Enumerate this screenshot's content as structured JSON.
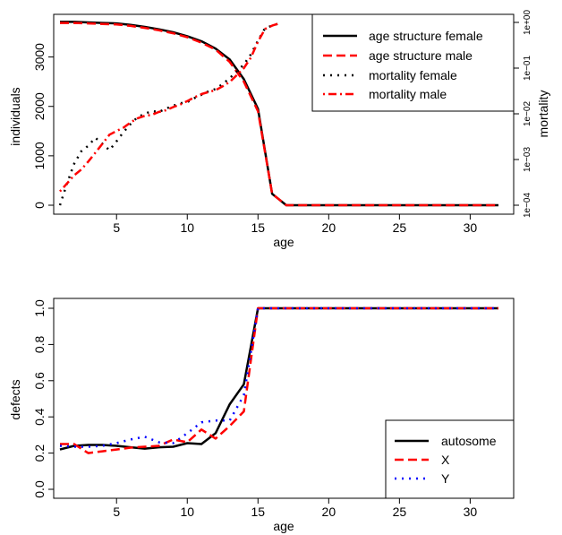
{
  "chart_data": [
    {
      "type": "line",
      "xlabel": "age",
      "ylabel": "individuals",
      "y2label": "mortality",
      "xlim": [
        1,
        32
      ],
      "ylim": [
        0,
        3700
      ],
      "y2lim": [
        0.0001,
        1
      ],
      "y2_scale": "log",
      "x_ticks": [
        5,
        10,
        15,
        20,
        25,
        30
      ],
      "y_ticks": [
        0,
        1000,
        2000,
        3000
      ],
      "y2_ticks": [
        {
          "value": 0.0001,
          "label": "1e−04"
        },
        {
          "value": 0.001,
          "label": "1e−03"
        },
        {
          "value": 0.01,
          "label": "1e−02"
        },
        {
          "value": 0.1,
          "label": "1e−01"
        },
        {
          "value": 1,
          "label": "1e+00"
        }
      ],
      "legend_position": "top-right",
      "series": [
        {
          "name": "age structure female",
          "axis": "left",
          "color": "#000000",
          "style": "solid",
          "x": [
            1,
            2,
            3,
            4,
            5,
            6,
            7,
            8,
            9,
            10,
            11,
            12,
            13,
            14,
            15,
            16,
            17,
            18,
            19,
            20,
            21,
            22,
            23,
            24,
            25,
            26,
            27,
            28,
            29,
            30,
            31,
            32
          ],
          "y": [
            3710,
            3710,
            3700,
            3690,
            3680,
            3650,
            3610,
            3560,
            3500,
            3420,
            3320,
            3170,
            2950,
            2550,
            1950,
            230,
            0,
            0,
            0,
            0,
            0,
            0,
            0,
            0,
            0,
            0,
            0,
            0,
            0,
            0,
            0,
            0
          ]
        },
        {
          "name": "age structure male",
          "axis": "left",
          "color": "#ff0000",
          "style": "dashed",
          "x": [
            1,
            2,
            3,
            4,
            5,
            6,
            7,
            8,
            9,
            10,
            11,
            12,
            13,
            14,
            15,
            16,
            17,
            18,
            19,
            20,
            21,
            22,
            23,
            24,
            25,
            26,
            27,
            28,
            29,
            30,
            31,
            32
          ],
          "y": [
            3690,
            3690,
            3680,
            3670,
            3660,
            3630,
            3590,
            3540,
            3480,
            3400,
            3290,
            3150,
            2900,
            2500,
            1900,
            230,
            0,
            0,
            0,
            0,
            0,
            0,
            0,
            0,
            0,
            0,
            0,
            0,
            0,
            0,
            0,
            0
          ]
        },
        {
          "name": "mortality female",
          "axis": "right",
          "color": "#000000",
          "style": "dotted",
          "x": [
            1,
            1.5,
            2,
            2.5,
            3,
            3.5,
            4,
            4.5,
            5,
            5.5,
            6,
            6.5,
            7,
            7.5,
            8,
            8.5,
            9,
            9.5,
            10,
            10.5,
            11,
            11.5,
            12,
            12.5,
            13,
            13.5,
            14,
            14.5,
            15,
            15.5,
            16,
            16.5
          ],
          "y": [
            0.0001,
            0.0003,
            0.0008,
            0.0015,
            0.002,
            0.003,
            0.0022,
            0.0016,
            0.0025,
            0.004,
            0.006,
            0.0085,
            0.01,
            0.0115,
            0.011,
            0.013,
            0.015,
            0.017,
            0.018,
            0.022,
            0.026,
            0.031,
            0.035,
            0.045,
            0.06,
            0.085,
            0.12,
            0.2,
            0.4,
            0.75,
            0.85,
            0.95
          ]
        },
        {
          "name": "mortality male",
          "axis": "right",
          "color": "#ff0000",
          "style": "dotdash",
          "x": [
            1,
            1.5,
            2,
            2.5,
            3,
            3.5,
            4,
            4.5,
            5,
            5.5,
            6,
            6.5,
            7,
            7.5,
            8,
            8.5,
            9,
            9.5,
            10,
            10.5,
            11,
            11.5,
            12,
            12.5,
            13,
            13.5,
            14,
            14.5,
            15,
            15.5,
            16,
            16.5
          ],
          "y": [
            0.0002,
            0.0003,
            0.00045,
            0.0006,
            0.0009,
            0.0014,
            0.0022,
            0.0035,
            0.0042,
            0.005,
            0.0065,
            0.008,
            0.009,
            0.0095,
            0.011,
            0.012,
            0.014,
            0.016,
            0.019,
            0.023,
            0.027,
            0.03,
            0.033,
            0.04,
            0.05,
            0.07,
            0.1,
            0.17,
            0.38,
            0.72,
            0.85,
            0.95
          ]
        }
      ]
    },
    {
      "type": "line",
      "xlabel": "age",
      "ylabel": "defects",
      "xlim": [
        1,
        32
      ],
      "ylim": [
        0,
        1
      ],
      "x_ticks": [
        5,
        10,
        15,
        20,
        25,
        30
      ],
      "y_ticks": [
        0,
        0.2,
        0.4,
        0.6,
        0.8,
        1
      ],
      "y_tick_labels": [
        "0.0",
        "0.2",
        "0.4",
        "0.6",
        "0.8",
        "1.0"
      ],
      "legend_position": "bottom-right",
      "series": [
        {
          "name": "autosome",
          "color": "#000000",
          "style": "solid",
          "x": [
            1,
            2,
            3,
            4,
            5,
            6,
            7,
            8,
            9,
            10,
            11,
            12,
            13,
            14,
            15,
            16,
            17,
            18,
            19,
            20,
            21,
            22,
            23,
            24,
            25,
            26,
            27,
            28,
            29,
            30,
            31,
            32
          ],
          "y": [
            0.22,
            0.24,
            0.245,
            0.245,
            0.24,
            0.232,
            0.225,
            0.232,
            0.235,
            0.255,
            0.25,
            0.31,
            0.47,
            0.58,
            1,
            1,
            1,
            1,
            1,
            1,
            1,
            1,
            1,
            1,
            1,
            1,
            1,
            1,
            1,
            1,
            1,
            1
          ]
        },
        {
          "name": "X",
          "color": "#ff0000",
          "style": "dashed",
          "x": [
            1,
            2,
            3,
            4,
            5,
            6,
            7,
            8,
            9,
            10,
            11,
            12,
            13,
            14,
            15,
            16,
            17,
            18,
            19,
            20,
            21,
            22,
            23,
            24,
            25,
            26,
            27,
            28,
            29,
            30,
            31,
            32
          ],
          "y": [
            0.25,
            0.25,
            0.2,
            0.21,
            0.22,
            0.23,
            0.235,
            0.24,
            0.275,
            0.26,
            0.33,
            0.28,
            0.35,
            0.43,
            1,
            1,
            1,
            1,
            1,
            1,
            1,
            1,
            1,
            1,
            1,
            1,
            1,
            1,
            1,
            1,
            1,
            1
          ]
        },
        {
          "name": "Y",
          "color": "#0000ff",
          "style": "dotted",
          "x": [
            1,
            2,
            3,
            4,
            5,
            6,
            7,
            8,
            9,
            10,
            11,
            12,
            13,
            14,
            15,
            16,
            17,
            18,
            19,
            20,
            21,
            22,
            23,
            24,
            25,
            26,
            27,
            28,
            29,
            30,
            31,
            32
          ],
          "y": [
            0.24,
            0.235,
            0.235,
            0.24,
            0.255,
            0.275,
            0.29,
            0.26,
            0.255,
            0.31,
            0.37,
            0.38,
            0.38,
            0.52,
            1,
            1,
            1,
            1,
            1,
            1,
            1,
            1,
            1,
            1,
            1,
            1,
            1,
            1,
            1,
            1,
            1,
            1
          ]
        }
      ]
    }
  ]
}
